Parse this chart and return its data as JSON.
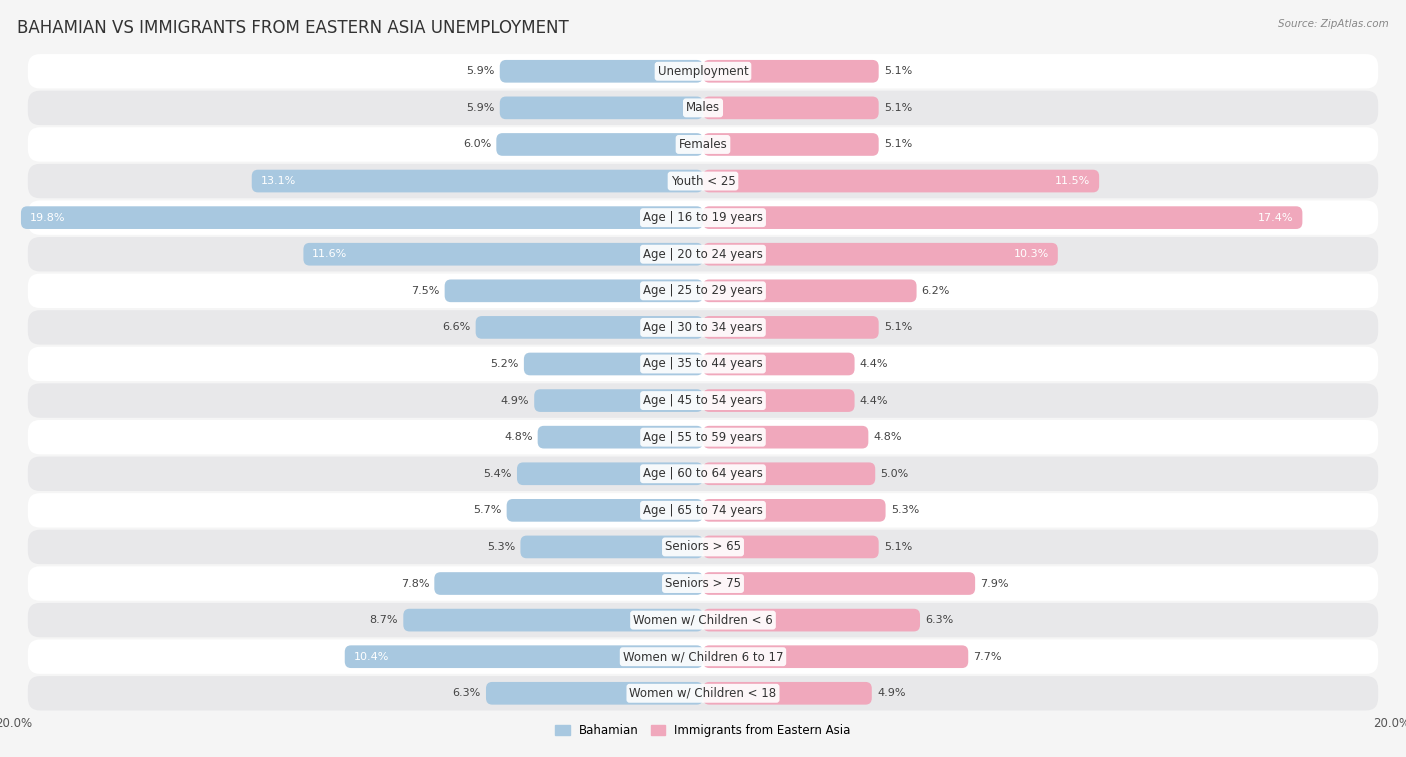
{
  "title": "BAHAMIAN VS IMMIGRANTS FROM EASTERN ASIA UNEMPLOYMENT",
  "source": "Source: ZipAtlas.com",
  "categories": [
    "Unemployment",
    "Males",
    "Females",
    "Youth < 25",
    "Age | 16 to 19 years",
    "Age | 20 to 24 years",
    "Age | 25 to 29 years",
    "Age | 30 to 34 years",
    "Age | 35 to 44 years",
    "Age | 45 to 54 years",
    "Age | 55 to 59 years",
    "Age | 60 to 64 years",
    "Age | 65 to 74 years",
    "Seniors > 65",
    "Seniors > 75",
    "Women w/ Children < 6",
    "Women w/ Children 6 to 17",
    "Women w/ Children < 18"
  ],
  "bahamian": [
    5.9,
    5.9,
    6.0,
    13.1,
    19.8,
    11.6,
    7.5,
    6.6,
    5.2,
    4.9,
    4.8,
    5.4,
    5.7,
    5.3,
    7.8,
    8.7,
    10.4,
    6.3
  ],
  "eastern_asia": [
    5.1,
    5.1,
    5.1,
    11.5,
    17.4,
    10.3,
    6.2,
    5.1,
    4.4,
    4.4,
    4.8,
    5.0,
    5.3,
    5.1,
    7.9,
    6.3,
    7.7,
    4.9
  ],
  "bahamian_color": "#a8c8e0",
  "eastern_asia_color": "#f0a8bc",
  "bar_height": 0.62,
  "xlim": 20.0,
  "background_color": "#f5f5f5",
  "row_color_light": "#ffffff",
  "row_color_dark": "#e8e8ea",
  "title_fontsize": 12,
  "label_fontsize": 8.5,
  "value_fontsize": 8.0
}
